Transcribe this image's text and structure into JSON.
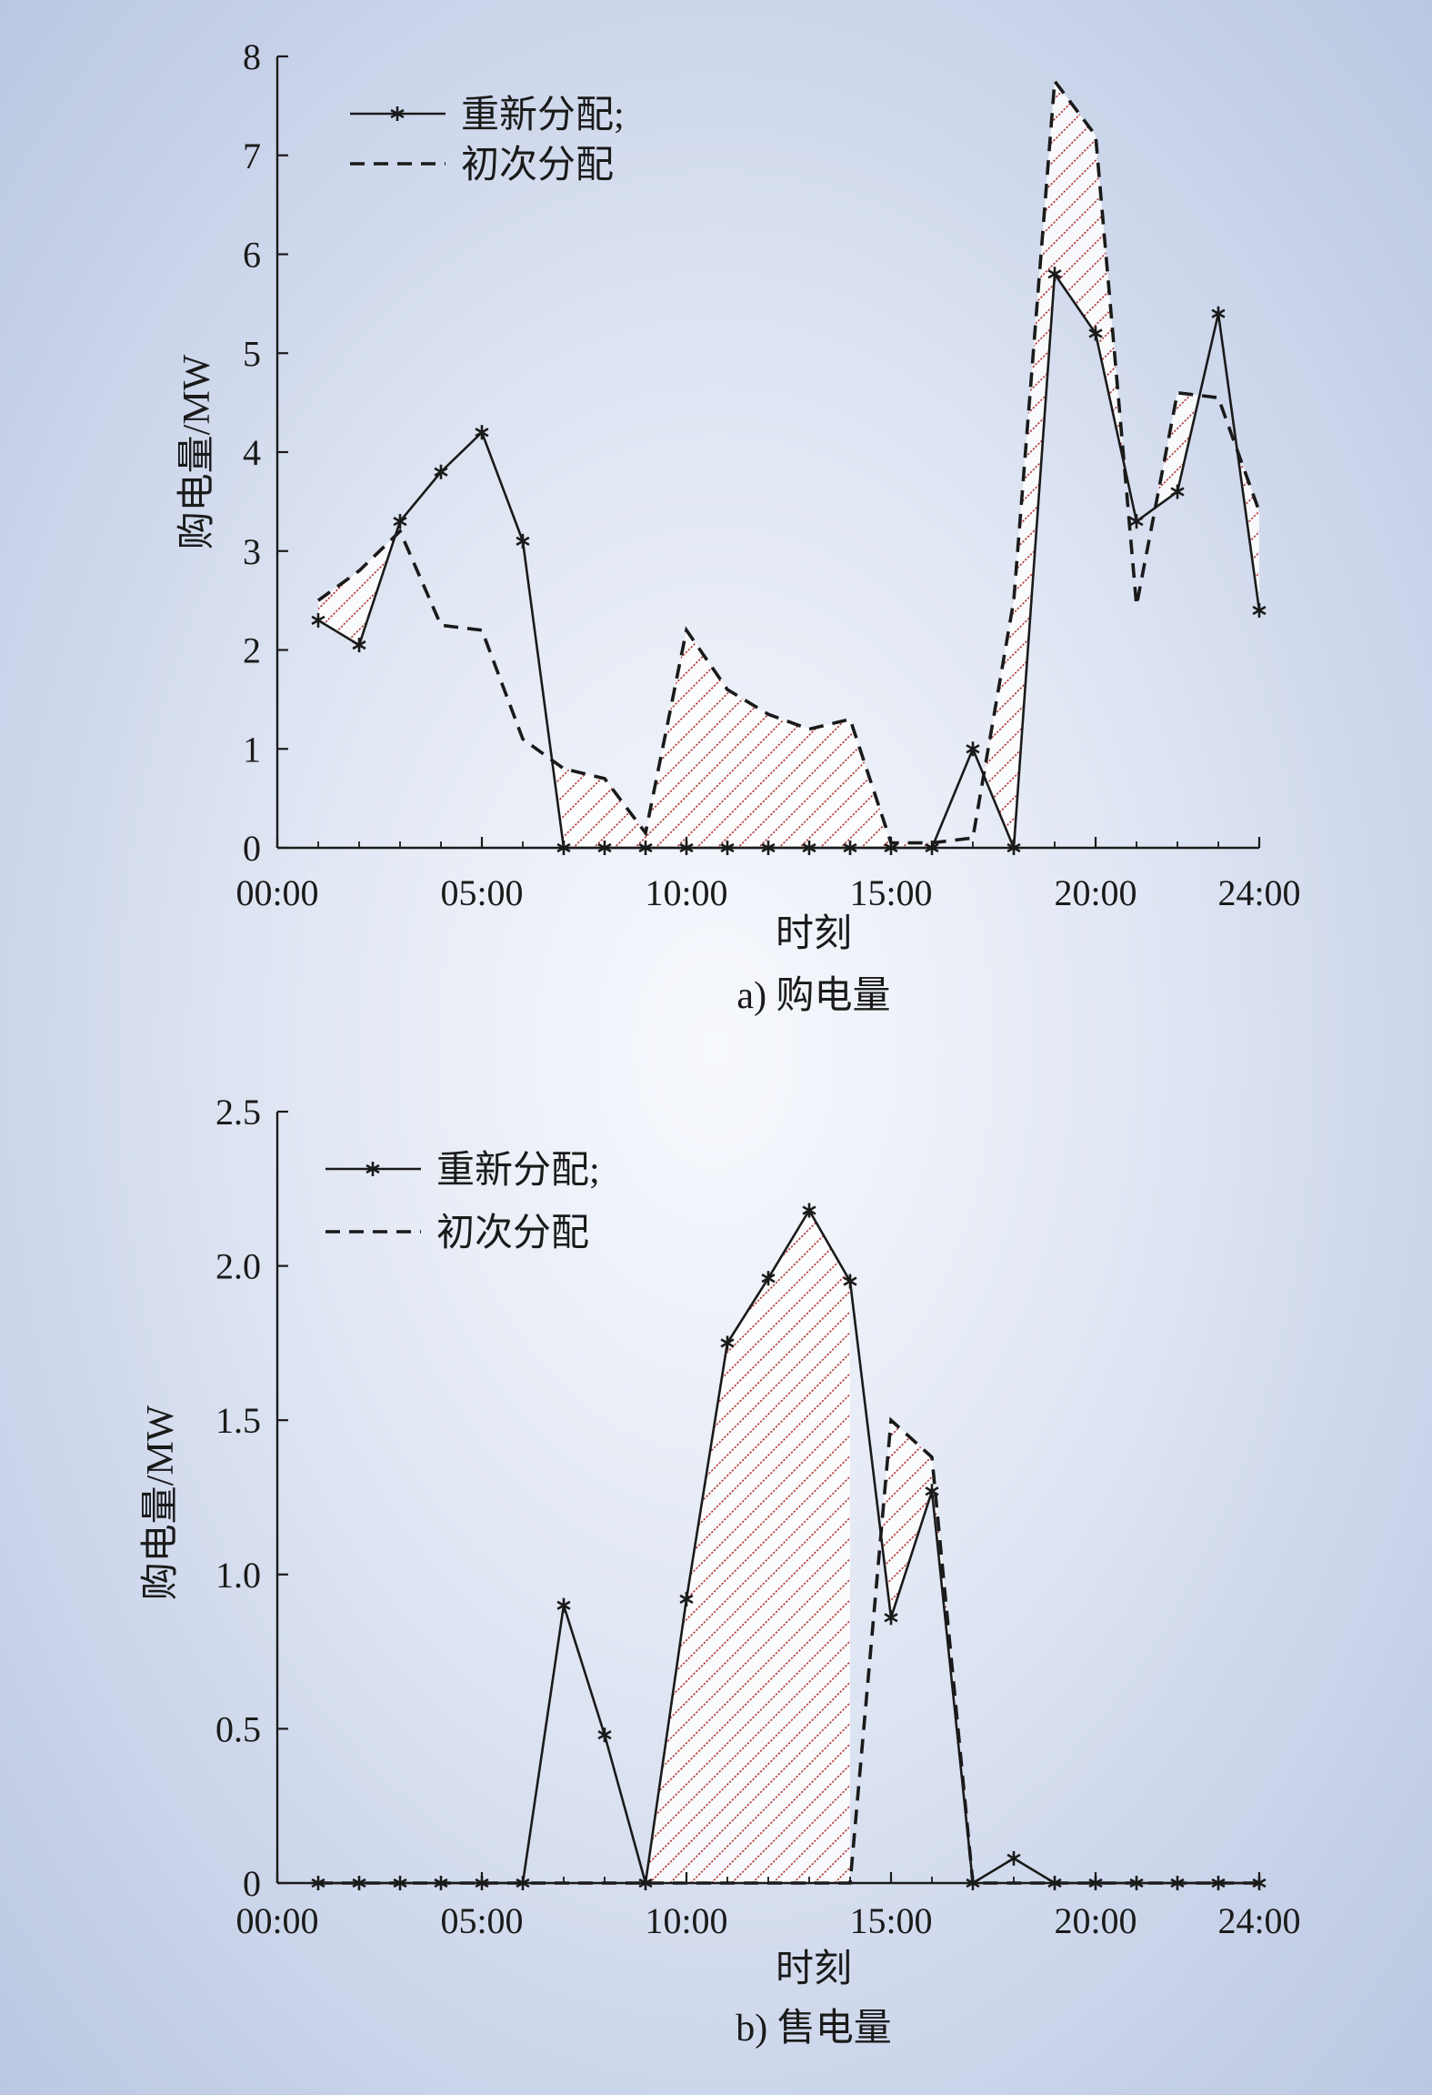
{
  "chart_data": [
    {
      "type": "line",
      "caption": "a) 购电量",
      "xlabel": "时刻",
      "ylabel": "购电量/MW",
      "xlim": [
        0,
        24
      ],
      "ylim": [
        0,
        8
      ],
      "yticks": [
        "0",
        "1",
        "2",
        "3",
        "4",
        "5",
        "6",
        "7",
        "8"
      ],
      "xticks": [
        {
          "value": 0,
          "label": "00:00"
        },
        {
          "value": 5,
          "label": "05:00"
        },
        {
          "value": 10,
          "label": "10:00"
        },
        {
          "value": 15,
          "label": "15:00"
        },
        {
          "value": 20,
          "label": "20:00"
        },
        {
          "value": 24,
          "label": "24:00"
        }
      ],
      "legend_position": "top-left",
      "series": [
        {
          "name": "重新分配;",
          "style": "solid-star",
          "color": "#1a1a1a",
          "x": [
            1,
            2,
            3,
            4,
            5,
            6,
            7,
            8,
            9,
            10,
            11,
            12,
            13,
            14,
            15,
            16,
            17,
            18,
            19,
            20,
            21,
            22,
            23,
            24
          ],
          "values": [
            2.3,
            2.05,
            3.3,
            3.8,
            4.2,
            3.1,
            0,
            0,
            0,
            0,
            0,
            0,
            0,
            0,
            0,
            0,
            1.0,
            0,
            5.8,
            5.2,
            3.3,
            3.6,
            5.4,
            2.4
          ]
        },
        {
          "name": "初次分配",
          "style": "dashed",
          "color": "#1a1a1a",
          "x": [
            1,
            2,
            3,
            4,
            5,
            6,
            7,
            8,
            9,
            10,
            11,
            12,
            13,
            14,
            15,
            16,
            17,
            18,
            19,
            20,
            21,
            22,
            23,
            24
          ],
          "values": [
            2.5,
            2.8,
            3.2,
            2.25,
            2.2,
            1.1,
            0.8,
            0.7,
            0.15,
            2.2,
            1.6,
            1.35,
            1.2,
            1.3,
            0.05,
            0.05,
            0.1,
            2.5,
            7.75,
            7.2,
            2.45,
            4.6,
            4.55,
            3.4
          ]
        }
      ],
      "hatch_color": "#b03030"
    },
    {
      "type": "line",
      "caption": "b) 售电量",
      "xlabel": "时刻",
      "ylabel": "购电量/MW",
      "xlim": [
        0,
        24
      ],
      "ylim": [
        0,
        2.5
      ],
      "yticks": [
        "0",
        "0.5",
        "1.0",
        "1.5",
        "2.0",
        "2.5"
      ],
      "xticks": [
        {
          "value": 0,
          "label": "00:00"
        },
        {
          "value": 5,
          "label": "05:00"
        },
        {
          "value": 10,
          "label": "10:00"
        },
        {
          "value": 15,
          "label": "15:00"
        },
        {
          "value": 20,
          "label": "20:00"
        },
        {
          "value": 24,
          "label": "24:00"
        }
      ],
      "legend_position": "top-left",
      "series": [
        {
          "name": "重新分配;",
          "style": "solid-star",
          "color": "#1a1a1a",
          "x": [
            1,
            2,
            3,
            4,
            5,
            6,
            7,
            8,
            9,
            10,
            11,
            12,
            13,
            14,
            15,
            16,
            17,
            18,
            19,
            20,
            21,
            22,
            23,
            24
          ],
          "values": [
            0,
            0,
            0,
            0,
            0,
            0,
            0.9,
            0.48,
            0,
            0.92,
            1.75,
            1.96,
            2.18,
            1.95,
            0.86,
            1.27,
            0,
            0.08,
            0,
            0,
            0,
            0,
            0,
            0
          ]
        },
        {
          "name": "初次分配",
          "style": "dashed",
          "color": "#1a1a1a",
          "x": [
            1,
            2,
            3,
            4,
            5,
            6,
            7,
            8,
            9,
            10,
            11,
            12,
            13,
            14,
            15,
            16,
            17,
            18,
            19,
            20,
            21,
            22,
            23,
            24
          ],
          "values": [
            0,
            0,
            0,
            0,
            0,
            0,
            0,
            0,
            0,
            0,
            0,
            0,
            0,
            0,
            1.5,
            1.38,
            0,
            0,
            0,
            0,
            0,
            0,
            0,
            0
          ]
        }
      ],
      "hatch_color": "#b03030"
    }
  ]
}
